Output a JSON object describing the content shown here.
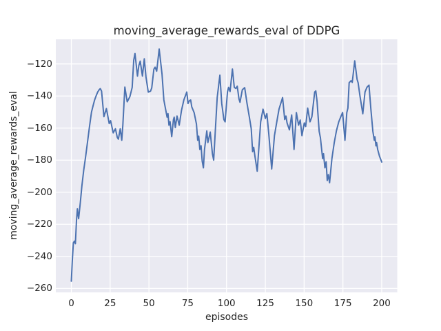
{
  "colors": {
    "line": "#4c72b0",
    "plot_background": "#eaeaf2",
    "grid": "#ffffff",
    "text": "#262626",
    "figure_background": "#ffffff"
  },
  "chart_data": {
    "type": "line",
    "title": "moving_average_rewards_eval of DDPG",
    "xlabel": "episodes",
    "ylabel": "moving_average_rewards_eval",
    "legend": "none",
    "grid": true,
    "xlim": [
      -10,
      210
    ],
    "ylim": [
      -262.45,
      -104.65
    ],
    "xticks": [
      0,
      25,
      50,
      75,
      100,
      125,
      150,
      175,
      200
    ],
    "yticks": [
      -260,
      -240,
      -220,
      -200,
      -180,
      -160,
      -140,
      -120
    ],
    "x": [
      0,
      0.6,
      1.3,
      2,
      2.6,
      3.3,
      3.9,
      4.7,
      5.8,
      6.8,
      8,
      9.2,
      10.2,
      11.7,
      13,
      14,
      15,
      16,
      17,
      18,
      18.7,
      19.5,
      21,
      22.6,
      24.4,
      25.3,
      27,
      28.4,
      29.6,
      30.3,
      31.5,
      32.5,
      33.2,
      34.5,
      36,
      37.7,
      38.5,
      39.2,
      40.2,
      41,
      42.6,
      43.5,
      44.4,
      45.8,
      47,
      48.1,
      49.6,
      51,
      51.8,
      53.2,
      54,
      55,
      56.6,
      58.4,
      59.6,
      60.6,
      61.7,
      62.3,
      62.9,
      63.6,
      64.7,
      65.8,
      66.3,
      67,
      68.1,
      69.5,
      71,
      72.5,
      74.4,
      75.2,
      76,
      76.9,
      77.6,
      79.1,
      80.6,
      81.4,
      82.1,
      82.8,
      83.6,
      84.3,
      85.1,
      85.8,
      87.3,
      88,
      89.5,
      90.9,
      91.7,
      92.5,
      94,
      95.7,
      96.9,
      98.3,
      99.1,
      100.6,
      101.3,
      102.3,
      103.8,
      105,
      106,
      106.9,
      108,
      108.7,
      110.2,
      111.7,
      113.2,
      114.7,
      115.9,
      116.8,
      117.5,
      118.3,
      119.8,
      122,
      123.5,
      125,
      126,
      127.2,
      129.1,
      130.9,
      132.4,
      133.8,
      136.1,
      137.5,
      138.3,
      139,
      140.5,
      142,
      143.5,
      145,
      146.4,
      147.5,
      148.6,
      150.1,
      151,
      152.3,
      153.8,
      155,
      156.8,
      157.5,
      158.3,
      159.7,
      160.5,
      161.9,
      162.5,
      163.4,
      164.2,
      164.9,
      165.6,
      166.4,
      167.9,
      169.4,
      170.8,
      172.3,
      173.8,
      174.8,
      176.3,
      177.5,
      178.2,
      179,
      180.2,
      181,
      182.6,
      184.1,
      184.8,
      186,
      187.8,
      189.2,
      190.5,
      191.8,
      193,
      194.3,
      195.2,
      195.6,
      196.3,
      196.7,
      197.4,
      198.6,
      200
    ],
    "y": [
      -255.5,
      -242.8,
      -231.5,
      -230.5,
      -232.1,
      -217.7,
      -210.4,
      -216.5,
      -206.3,
      -196.2,
      -186.2,
      -178,
      -170.4,
      -159,
      -150,
      -146,
      -142.5,
      -139.8,
      -137.5,
      -136,
      -135.4,
      -137,
      -152.9,
      -147.8,
      -157.2,
      -155.4,
      -163,
      -160.4,
      -165.8,
      -166.9,
      -160.4,
      -167.6,
      -158,
      -134.4,
      -143.6,
      -140.5,
      -137.5,
      -134.7,
      -117.6,
      -113.5,
      -127.6,
      -121,
      -118.3,
      -127.6,
      -116.8,
      -128.3,
      -137.6,
      -137,
      -135,
      -123.3,
      -122,
      -124.5,
      -110.7,
      -126.2,
      -142.5,
      -147.5,
      -153.2,
      -151,
      -158.2,
      -156,
      -165.4,
      -154.7,
      -153.2,
      -159.7,
      -152.5,
      -158.2,
      -149,
      -142.5,
      -137.5,
      -144.7,
      -143,
      -142.5,
      -146.8,
      -150.3,
      -157.5,
      -167.6,
      -165,
      -173.3,
      -171,
      -180.5,
      -184.8,
      -173.3,
      -161.8,
      -169,
      -162.5,
      -176.1,
      -180,
      -166.1,
      -141,
      -127,
      -144.7,
      -154.7,
      -156.1,
      -137.5,
      -134.6,
      -137.2,
      -123.2,
      -134.6,
      -135.3,
      -133.9,
      -141.8,
      -143.9,
      -136.1,
      -134.8,
      -144.7,
      -153.2,
      -160.4,
      -174.7,
      -172,
      -177.6,
      -186.9,
      -156.1,
      -148.2,
      -154,
      -151,
      -163.3,
      -185.5,
      -164.7,
      -156.1,
      -148.2,
      -141,
      -154.7,
      -152.5,
      -156.8,
      -161.1,
      -151.8,
      -173.3,
      -150.3,
      -158.2,
      -155,
      -164.7,
      -156.8,
      -159,
      -147.5,
      -156.1,
      -153,
      -137.5,
      -136.8,
      -143.2,
      -162,
      -166,
      -179,
      -176,
      -184.8,
      -181,
      -192.7,
      -189,
      -194.1,
      -179,
      -169,
      -161.8,
      -156.1,
      -152.5,
      -150.3,
      -167.6,
      -150.3,
      -147.5,
      -131.7,
      -130.5,
      -131.5,
      -118.1,
      -129.6,
      -131.7,
      -140,
      -151.1,
      -137.5,
      -134.5,
      -133.2,
      -148,
      -162,
      -167.6,
      -165.4,
      -171.1,
      -169,
      -173.3,
      -177.6,
      -181.2
    ]
  }
}
